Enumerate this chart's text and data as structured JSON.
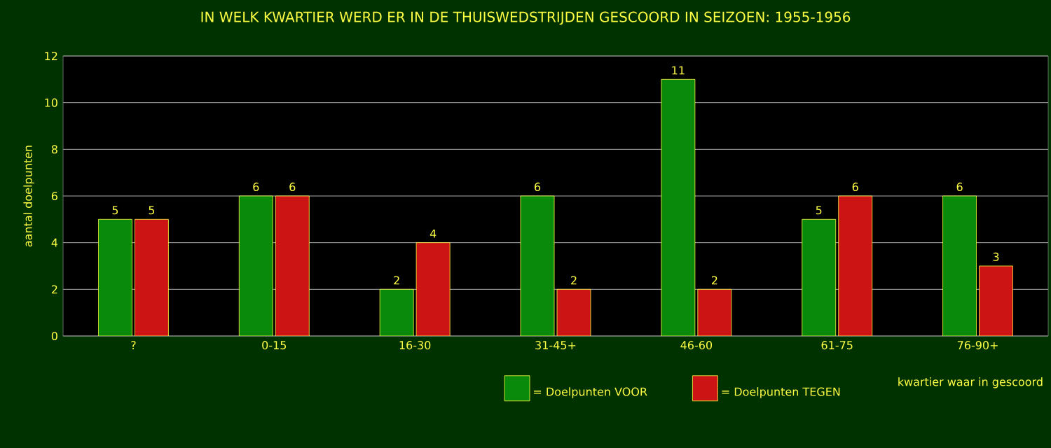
{
  "chart_data": {
    "type": "bar",
    "title": "IN WELK KWARTIER WERD ER IN DE THUISWEDSTRIJDEN GESCOORD IN SEIZOEN: 1955-1956",
    "xlabel": "kwartier waar in gescoord",
    "ylabel": "aantal doelpunten",
    "categories": [
      "?",
      "0-15",
      "16-30",
      "31-45+",
      "46-60",
      "61-75",
      "76-90+"
    ],
    "series": [
      {
        "name": "= Doelpunten VOOR",
        "color": "#0a8a0a",
        "values": [
          5,
          6,
          2,
          6,
          11,
          5,
          6
        ]
      },
      {
        "name": "= Doelpunten TEGEN",
        "color": "#cc1414",
        "values": [
          5,
          6,
          4,
          2,
          2,
          6,
          3
        ]
      }
    ],
    "ylim": [
      0,
      12
    ],
    "yticks": [
      0,
      2,
      4,
      6,
      8,
      10,
      12
    ],
    "grid": "y",
    "legend": "bottom",
    "data_labels": true
  }
}
